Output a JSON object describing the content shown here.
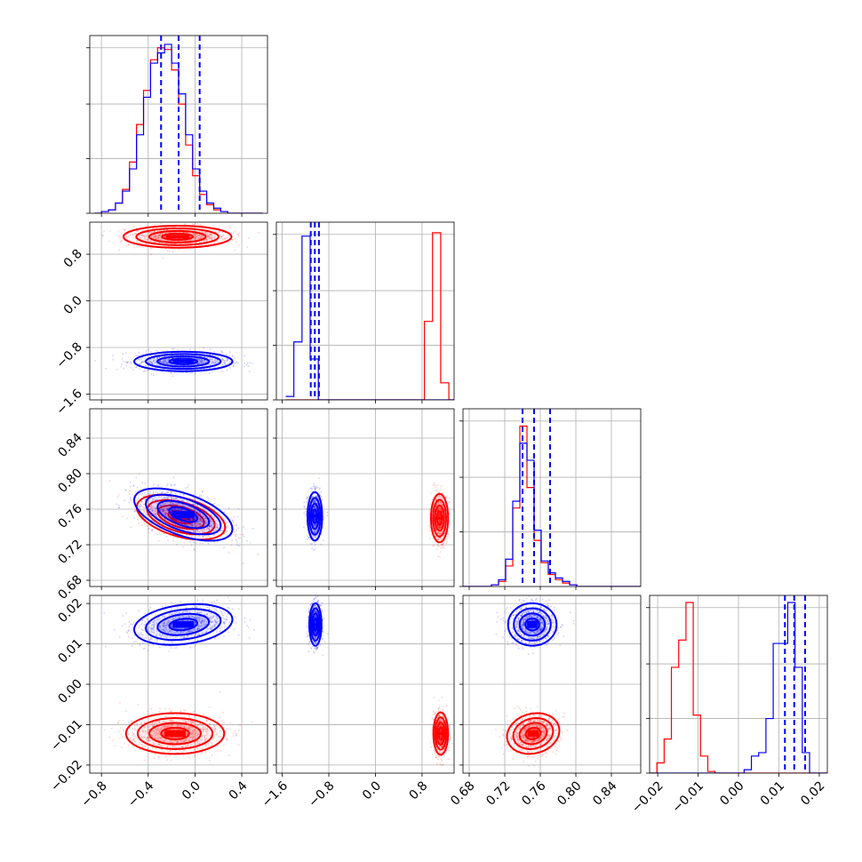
{
  "colors": {
    "red": "#ff0000",
    "blue": "#0000ff",
    "grid": "#b0b0b0",
    "axes": "#000000"
  },
  "chart_data": {
    "type": "corner",
    "grid": true,
    "legend": "none",
    "dimensions": [
      {
        "ticks": [
          "−0.8",
          "−0.4",
          "0.0",
          "0.4"
        ],
        "tick_values": [
          -0.8,
          -0.4,
          0.0,
          0.4
        ],
        "range": [
          -0.9,
          0.62
        ]
      },
      {
        "ticks": [
          "−1.6",
          "−0.8",
          "0.0",
          "0.8"
        ],
        "tick_values": [
          -1.6,
          -0.8,
          0.0,
          0.8
        ],
        "range": [
          -1.7,
          1.35
        ]
      },
      {
        "ticks": [
          "0.68",
          "0.72",
          "0.76",
          "0.80",
          "0.84"
        ],
        "tick_values": [
          0.68,
          0.72,
          0.76,
          0.8,
          0.84
        ],
        "range": [
          0.673,
          0.873
        ]
      },
      {
        "ticks": [
          "−0.02",
          "−0.01",
          "0.00",
          "0.01",
          "0.02"
        ],
        "tick_values": [
          -0.02,
          -0.01,
          0.0,
          0.01,
          0.02
        ],
        "range": [
          -0.022,
          0.022
        ]
      }
    ],
    "histograms": [
      {
        "dimension": 0,
        "bins": [
          -0.86,
          -0.8,
          -0.74,
          -0.68,
          -0.62,
          -0.56,
          -0.5,
          -0.44,
          -0.38,
          -0.32,
          -0.26,
          -0.2,
          -0.14,
          -0.08,
          -0.02,
          0.04,
          0.1,
          0.16,
          0.22,
          0.28,
          0.34,
          0.4,
          0.46,
          0.52,
          0.58
        ],
        "ymax": 1.0,
        "series": [
          {
            "color": "red",
            "counts": [
              0.0,
              0.01,
              0.02,
              0.06,
              0.14,
              0.3,
              0.52,
              0.72,
              0.9,
              0.97,
              0.96,
              0.84,
              0.64,
              0.4,
              0.22,
              0.11,
              0.05,
              0.02,
              0.01,
              0.0,
              0.0,
              0.0,
              0.0,
              0.0
            ]
          },
          {
            "color": "blue",
            "counts": [
              0.0,
              0.01,
              0.02,
              0.06,
              0.13,
              0.26,
              0.46,
              0.68,
              0.88,
              0.94,
              0.99,
              0.88,
              0.7,
              0.46,
              0.26,
              0.13,
              0.06,
              0.03,
              0.01,
              0.0,
              0.0,
              0.0,
              0.0,
              0.0
            ]
          }
        ],
        "quantiles": [
          -0.29,
          -0.14,
          0.04
        ]
      },
      {
        "dimension": 1,
        "bins": [
          -1.54,
          -1.4,
          -1.26,
          -1.12,
          -0.98,
          -0.84,
          -0.7,
          -0.56,
          -0.42,
          -0.28,
          -0.14,
          0.0,
          0.14,
          0.28,
          0.42,
          0.56,
          0.7,
          0.84,
          0.98,
          1.12,
          1.26,
          1.4
        ],
        "ymax": 1.0,
        "series": [
          {
            "color": "red",
            "counts": [
              0,
              0,
              0,
              0,
              0,
              0,
              0,
              0,
              0,
              0,
              0,
              0,
              0,
              0,
              0,
              0,
              0,
              0.46,
              0.98,
              0.1,
              0
            ]
          },
          {
            "color": "blue",
            "counts": [
              0.02,
              0.34,
              0.96,
              0.24,
              0,
              0,
              0,
              0,
              0,
              0,
              0,
              0,
              0,
              0,
              0,
              0,
              0,
              0,
              0,
              0,
              0
            ]
          }
        ],
        "quantiles": [
          -1.11,
          -1.04,
          -0.97
        ]
      },
      {
        "dimension": 2,
        "bins": [
          0.673,
          0.681,
          0.689,
          0.697,
          0.705,
          0.713,
          0.721,
          0.729,
          0.737,
          0.745,
          0.753,
          0.761,
          0.769,
          0.777,
          0.785,
          0.793,
          0.801,
          0.809,
          0.817,
          0.825,
          0.833,
          0.841,
          0.849,
          0.857,
          0.865,
          0.873
        ],
        "ymax": 1.0,
        "series": [
          {
            "color": "red",
            "counts": [
              0.0,
              0.0,
              0.0,
              0.0,
              0.01,
              0.03,
              0.12,
              0.46,
              0.94,
              0.58,
              0.27,
              0.14,
              0.07,
              0.04,
              0.02,
              0.01,
              0.0,
              0.0,
              0.0,
              0.0,
              0.0,
              0.0,
              0.0,
              0.0,
              0.0
            ]
          },
          {
            "color": "blue",
            "counts": [
              0.0,
              0.0,
              0.0,
              0.0,
              0.01,
              0.04,
              0.16,
              0.5,
              0.84,
              0.74,
              0.33,
              0.15,
              0.08,
              0.05,
              0.03,
              0.01,
              0.0,
              0.0,
              0.0,
              0.0,
              0.0,
              0.0,
              0.0,
              0.0,
              0.0
            ]
          }
        ],
        "quantiles": [
          0.74,
          0.753,
          0.771
        ]
      },
      {
        "dimension": 3,
        "bins": [
          -0.022,
          -0.0202,
          -0.0184,
          -0.0166,
          -0.0148,
          -0.013,
          -0.0112,
          -0.0094,
          -0.0076,
          -0.0058,
          -0.004,
          -0.0022,
          -0.0004,
          0.0014,
          0.0032,
          0.005,
          0.0068,
          0.0086,
          0.0104,
          0.0122,
          0.014,
          0.0158,
          0.0176,
          0.0194,
          0.0212,
          0.022
        ],
        "ymax": 1.0,
        "series": [
          {
            "color": "red",
            "counts": [
              0.0,
              0.06,
              0.2,
              0.62,
              0.78,
              1.0,
              0.34,
              0.1,
              0.01,
              0.0,
              0.0,
              0.0,
              0.0,
              0.0,
              0.0,
              0.0,
              0.0,
              0.0,
              0.0,
              0.0,
              0.0,
              0.0,
              0.0,
              0.0,
              0.0
            ]
          },
          {
            "color": "blue",
            "counts": [
              0.0,
              0.0,
              0.0,
              0.0,
              0.0,
              0.0,
              0.0,
              0.0,
              0.0,
              0.0,
              0.0,
              0.0,
              0.0,
              0.02,
              0.1,
              0.12,
              0.32,
              0.76,
              0.76,
              1.0,
              0.62,
              0.12,
              0.0,
              0.0,
              0.0
            ]
          }
        ],
        "quantiles": [
          0.0115,
          0.0138,
          0.0165
        ]
      }
    ],
    "scatter_panels": [
      {
        "x_dimension": 0,
        "y_dimension": 1,
        "series": [
          {
            "color": "red",
            "center": [
              -0.15,
              1.1
            ],
            "spread": [
              0.22,
              0.09
            ],
            "correlation": 0.0
          },
          {
            "color": "blue",
            "center": [
              -0.1,
              -1.04
            ],
            "spread": [
              0.2,
              0.08
            ],
            "correlation": 0.0
          }
        ]
      },
      {
        "x_dimension": 0,
        "y_dimension": 2,
        "series": [
          {
            "color": "red",
            "center": [
              -0.12,
              0.751
            ],
            "spread": [
              0.18,
              0.012
            ],
            "correlation": -0.45
          },
          {
            "color": "blue",
            "center": [
              -0.1,
              0.754
            ],
            "spread": [
              0.2,
              0.014
            ],
            "correlation": -0.55
          }
        ]
      },
      {
        "x_dimension": 1,
        "y_dimension": 2,
        "series": [
          {
            "color": "red",
            "center": [
              1.1,
              0.75
            ],
            "spread": [
              0.07,
              0.013
            ],
            "correlation": 0.0
          },
          {
            "color": "blue",
            "center": [
              -1.04,
              0.752
            ],
            "spread": [
              0.06,
              0.013
            ],
            "correlation": 0.0
          }
        ]
      },
      {
        "x_dimension": 0,
        "y_dimension": 3,
        "series": [
          {
            "color": "red",
            "center": [
              -0.17,
              -0.0122
            ],
            "spread": [
              0.2,
              0.0024
            ],
            "correlation": 0.0
          },
          {
            "color": "blue",
            "center": [
              -0.1,
              0.0148
            ],
            "spread": [
              0.2,
              0.0024
            ],
            "correlation": 0.25
          }
        ]
      },
      {
        "x_dimension": 1,
        "y_dimension": 3,
        "series": [
          {
            "color": "red",
            "center": [
              1.12,
              -0.0122
            ],
            "spread": [
              0.06,
              0.0025
            ],
            "correlation": 0.0
          },
          {
            "color": "blue",
            "center": [
              -1.03,
              0.0148
            ],
            "spread": [
              0.05,
              0.0025
            ],
            "correlation": 0.0
          }
        ]
      },
      {
        "x_dimension": 2,
        "y_dimension": 3,
        "series": [
          {
            "color": "red",
            "center": [
              0.752,
              -0.0122
            ],
            "spread": [
              0.014,
              0.0024
            ],
            "correlation": 0.15
          },
          {
            "color": "blue",
            "center": [
              0.751,
              0.0148
            ],
            "spread": [
              0.013,
              0.0025
            ],
            "correlation": 0.0
          }
        ]
      }
    ]
  }
}
